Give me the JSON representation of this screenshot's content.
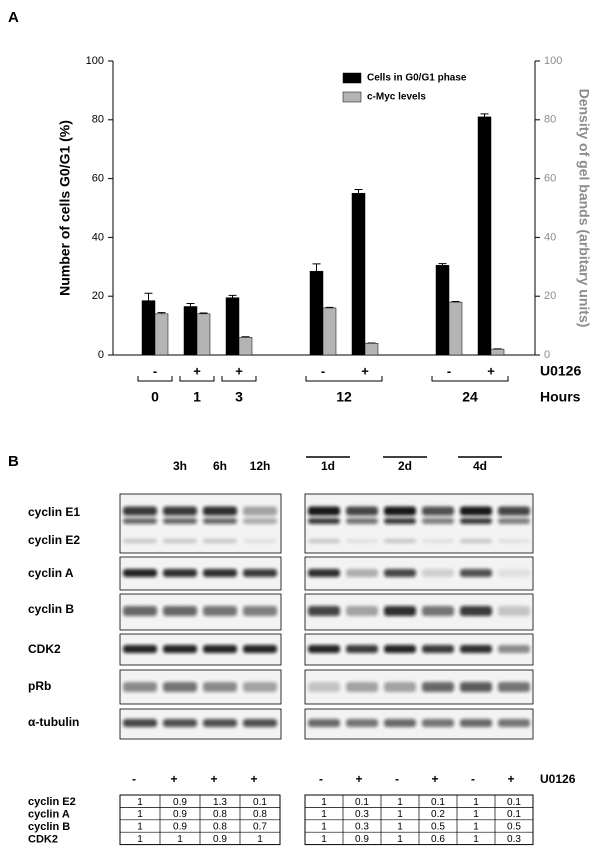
{
  "panel_a": {
    "label": "A"
  },
  "chart_data": {
    "type": "bar",
    "ylabel": "Number of cells G0/G1 (%)",
    "y2label": "Density of gel bands (arbitary units)",
    "groups": [
      {
        "label": "0",
        "signs": [
          "-"
        ]
      },
      {
        "label": "1",
        "signs": [
          "+"
        ]
      },
      {
        "label": "3",
        "signs": [
          "+"
        ]
      },
      {
        "label": "12",
        "signs": [
          "-",
          "+"
        ]
      },
      {
        "label": "24",
        "signs": [
          "-",
          "+"
        ]
      }
    ],
    "sign_label": "U0126",
    "group_label": "Hours",
    "series": [
      {
        "name": "Cells in G0/G1 phase",
        "color": "#000000",
        "values": [
          18.5,
          16.5,
          19.5,
          28.5,
          55,
          30.5,
          81
        ],
        "errors": [
          2.5,
          1,
          0.8,
          2.5,
          1.3,
          0.6,
          1
        ]
      },
      {
        "name": "c-Myc levels",
        "color": "#b4b4b4",
        "axis": "y2",
        "values": [
          14,
          14,
          6,
          16,
          4,
          18,
          2
        ],
        "errors": [
          0.4,
          0.3,
          0.2,
          0.2,
          0.1,
          0.2,
          0.1
        ]
      }
    ],
    "ylim": [
      0,
      100
    ],
    "yticks": [
      0,
      20,
      40,
      60,
      80,
      100
    ],
    "y2lim": [
      0,
      100
    ],
    "y2ticks": [
      0,
      20,
      40,
      60,
      80,
      100
    ],
    "y2color": "#8c8c8c",
    "legend": "upper right"
  },
  "panel_b": {
    "label": "B",
    "left_lanes": [
      "3h",
      "6h",
      "12h"
    ],
    "right_lanes": [
      "1d",
      "2d",
      "4d"
    ],
    "blot_rows": [
      "cyclin E1",
      "cyclin E2",
      "cyclin A",
      "cyclin B",
      "CDK2",
      "pRb",
      "α-tubulin"
    ],
    "left_signs": [
      "-",
      "+",
      "+",
      "+"
    ],
    "right_signs": [
      "-",
      "+",
      "-",
      "+",
      "-",
      "+"
    ],
    "treatment": "U0126",
    "table": {
      "rows": [
        {
          "label": "cyclin E2",
          "left": [
            1,
            0.9,
            1.3,
            0.1
          ],
          "right": [
            1,
            0.1,
            1,
            0.1,
            1,
            0.1
          ]
        },
        {
          "label": "cyclin A",
          "left": [
            1,
            0.9,
            0.8,
            0.8
          ],
          "right": [
            1,
            0.3,
            1,
            0.2,
            1,
            0.1
          ]
        },
        {
          "label": "cyclin B",
          "left": [
            1,
            0.9,
            0.8,
            0.7
          ],
          "right": [
            1,
            0.3,
            1,
            0.5,
            1,
            0.5
          ]
        },
        {
          "label": "CDK2",
          "left": [
            1,
            1,
            0.9,
            1
          ],
          "right": [
            1,
            0.9,
            1,
            0.6,
            1,
            0.3
          ]
        }
      ]
    }
  }
}
